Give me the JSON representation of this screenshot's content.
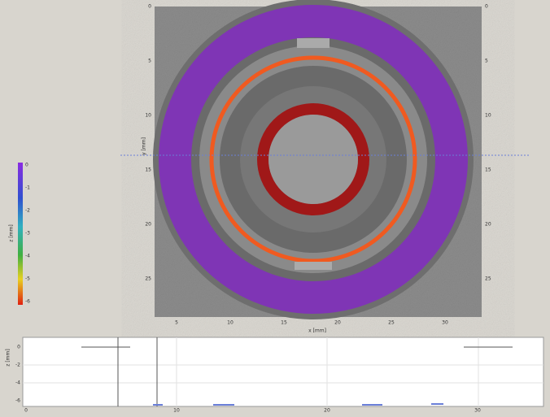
{
  "image_view": {
    "x_label": "x [mm]",
    "y_label": "y [mm]",
    "left_ticks": [
      "0",
      "5",
      "10",
      "15",
      "20",
      "25"
    ],
    "right_ticks": [
      "0",
      "5",
      "10",
      "15",
      "20",
      "25"
    ],
    "bottom_ticks": [
      "5",
      "10",
      "15",
      "20",
      "25",
      "30"
    ]
  },
  "colorbar": {
    "label": "z [mm]",
    "ticks": [
      "0",
      "-1",
      "-2",
      "-3",
      "-4",
      "-5",
      "-6"
    ]
  },
  "profile": {
    "y_label": "z [mm]",
    "y_ticks": [
      "0",
      "-2",
      "-4",
      "-6"
    ],
    "x_ticks": [
      "0",
      "10",
      "20",
      "30"
    ]
  }
}
